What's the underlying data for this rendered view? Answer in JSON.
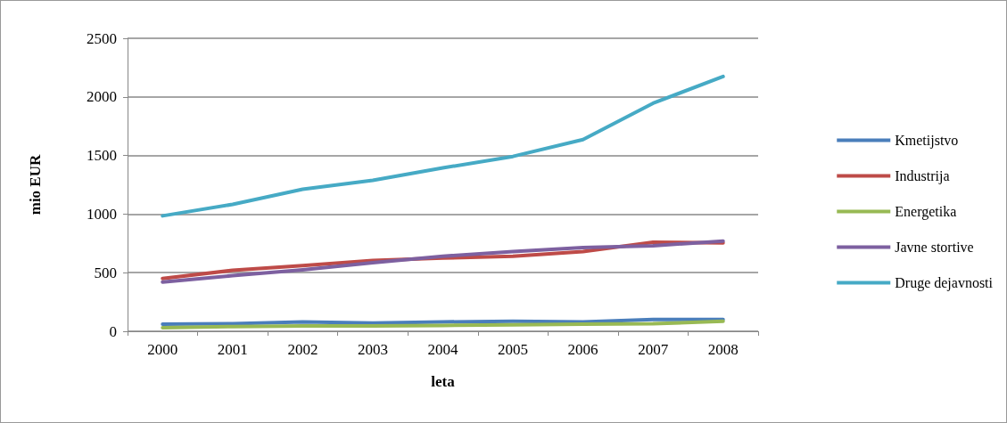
{
  "chart_data": {
    "type": "line",
    "xlabel": "leta",
    "ylabel": "mio EUR",
    "categories": [
      "2000",
      "2001",
      "2002",
      "2003",
      "2004",
      "2005",
      "2006",
      "2007",
      "2008"
    ],
    "series": [
      {
        "name": "Kmetijstvo",
        "color": "#4a7ebb",
        "values": [
          60,
          65,
          80,
          70,
          80,
          85,
          80,
          100,
          100
        ]
      },
      {
        "name": "Industrija",
        "color": "#be4b48",
        "values": [
          450,
          520,
          560,
          605,
          625,
          640,
          680,
          760,
          755
        ]
      },
      {
        "name": "Energetika",
        "color": "#98b954",
        "values": [
          30,
          40,
          45,
          45,
          50,
          55,
          60,
          65,
          85
        ]
      },
      {
        "name": "Javne stortive",
        "color": "#7d60a0",
        "values": [
          420,
          475,
          525,
          585,
          640,
          680,
          715,
          730,
          770
        ]
      },
      {
        "name": "Druge dejavnosti",
        "color": "#46aac5",
        "values": [
          985,
          1083,
          1212,
          1288,
          1394,
          1492,
          1636,
          1946,
          2174
        ]
      }
    ],
    "ylim": [
      0,
      2500
    ],
    "yticks": [
      0,
      500,
      1000,
      1500,
      2000,
      2500
    ],
    "grid": "y",
    "legend": "right",
    "marker": "none"
  }
}
